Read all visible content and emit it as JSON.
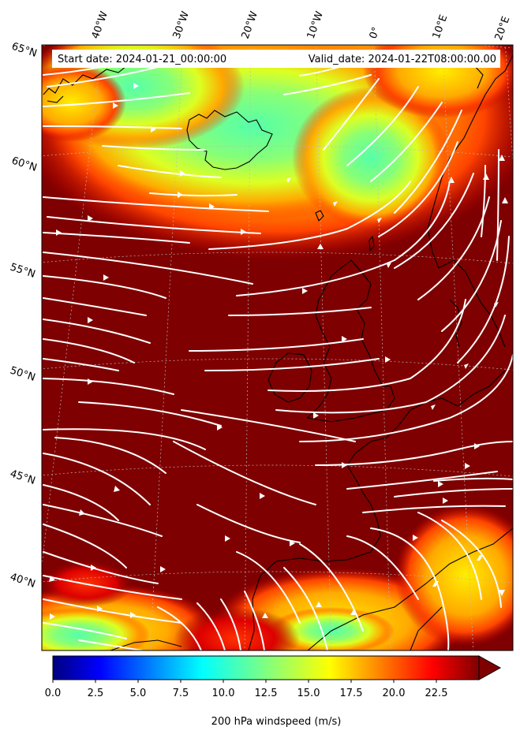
{
  "header": {
    "start_text": "Start date: 2024-01-21_00:00:00",
    "valid_text": "Valid_date: 2024-01-22T08:00:00.00"
  },
  "map": {
    "lon_labels": [
      "40°W",
      "30°W",
      "20°W",
      "10°W",
      "0°",
      "10°E",
      "20°E"
    ],
    "lat_labels": [
      "65°N",
      "60°N",
      "55°N",
      "50°N",
      "45°N",
      "40°N"
    ],
    "field": "200 hPa windspeed",
    "colormap": "jet",
    "background_color": "#7f0000",
    "coastline_color": "#000000",
    "streamline_color": "#ffffff",
    "gridlines": true
  },
  "colorbar": {
    "title": "200 hPa windspeed (m/s)",
    "tick_labels": [
      "0.0",
      "2.5",
      "5.0",
      "7.5",
      "10.0",
      "12.5",
      "15.0",
      "17.5",
      "20.0",
      "22.5"
    ],
    "min": 0,
    "max": 25,
    "extend": "max"
  }
}
